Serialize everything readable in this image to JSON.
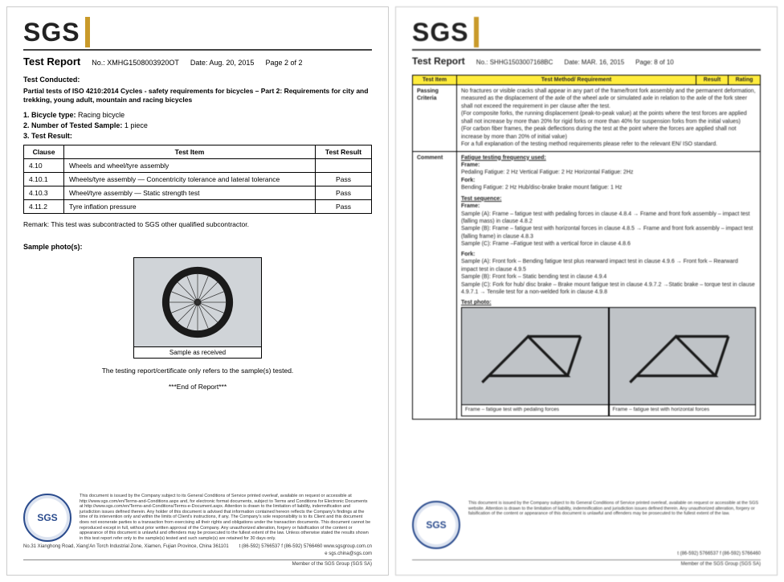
{
  "left": {
    "logo": "SGS",
    "title": "Test Report",
    "no_label": "No.:",
    "no": "XMHG1508003920OT",
    "date_label": "Date:",
    "date": "Aug. 20, 2015",
    "page_label": "Page 2 of  2",
    "conducted_label": "Test Conducted:",
    "conducted_desc": "Partial tests of ISO 4210:2014 Cycles - safety requirements for bicycles – Part 2: Requirements for city and trekking, young adult, mountain and racing bicycles",
    "line1_label": "1.   Bicycle type:",
    "line1_val": "Racing bicycle",
    "line2_label": "2.   Number of Tested Sample:",
    "line2_val": "1 piece",
    "line3_label": "3.   Test Result:",
    "table": {
      "headers": [
        "Clause",
        "Test Item",
        "Test Result"
      ],
      "rows": [
        [
          "4.10",
          "Wheels and wheel/tyre assembly",
          ""
        ],
        [
          "4.10.1",
          "Wheels/tyre assembly — Concentricity tolerance and lateral tolerance",
          "Pass"
        ],
        [
          "4.10.3",
          "Wheel/tyre assembly — Static strength test",
          "Pass"
        ],
        [
          "4.11.2",
          "Tyre inflation pressure",
          "Pass"
        ]
      ]
    },
    "remark": "Remark: This test was subcontracted to SGS other qualified subcontractor.",
    "sample_title": "Sample photo(s):",
    "sample_caption": "Sample as received",
    "end1": "The testing report/certificate only refers to the sample(s) tested.",
    "end2": "***End of Report***",
    "seal": "SGS",
    "footer_fine": "This document is issued by the Company subject to its General Conditions of Service printed overleaf, available on request or accessible at http://www.sgs.com/en/Terms-and-Conditions.aspx and, for electronic format documents, subject to Terms and Conditions for Electronic Documents at http://www.sgs.com/en/Terms-and-Conditions/Terms-e-Document.aspx. Attention is drawn to the limitation of liability, indemnification and jurisdiction issues defined therein. Any holder of this document is advised that information contained hereon reflects the Company's findings at the time of its intervention only and within the limits of Client's instructions, if any. The Company's sole responsibility is to its Client and this document does not exonerate parties to a transaction from exercising all their rights and obligations under the transaction documents. This document cannot be reproduced except in full, without prior written approval of the Company. Any unauthorized alteration, forgery or falsification of the content or appearance of this document is unlawful and offenders may be prosecuted to the fullest extent of the law. Unless otherwise stated the results shown in this test report refer only to the sample(s) tested and such sample(s) are retained for 30 days only.",
    "footer_addr": "No.31 Xianghong Road, Xiang'An Torch Industrial Zone, Xiamen, Fujian Province, China  361101",
    "footer_tel": "t (86-592) 5766537   f (86-592) 5766460   www.sgsgroup.com.cn",
    "footer_email": "e sgs.china@sgs.com",
    "footer_member": "Member of the SGS Group (SGS SA)"
  },
  "right": {
    "logo": "SGS",
    "title": "Test Report",
    "no_label": "No.:",
    "no": "SHHG1503007168BC",
    "date_label": "Date:",
    "date": "MAR. 16, 2015",
    "page_label": "Page: 8 of 10",
    "th1": "Test Item",
    "th2": "Test Method/ Requirement",
    "th3": "Result",
    "th4": "Rating",
    "row1_label": "Passing Criteria",
    "row1_text": "No fractures or visible cracks shall appear in any part of the frame/front fork assembly and the permanent deformation, measured as the displacement of the axle of the wheel axle or simulated axle in relation to the axle of the fork steer shall not exceed the requirement in per clause after the test.\n(For composite forks, the running displacement (peak-to-peak value) at the points where the test forces are applied shall not increase by more than 20% for rigid forks or more than 40% for suspension forks from the initial values)\n(For carbon fiber frames, the peak deflections during the test at the point where the forces are applied shall not increase by more than 20% of initial value)\nFor a full explanation of the testing method requirements please refer to the relevant EN/ ISO standard.",
    "row2_label": "Comment",
    "row2_block1_title": "Fatigue testing frequency used:",
    "row2_frame": "Frame:",
    "row2_frame_line": "Pedaling Fatigue:  2 Hz      Vertical Fatigue:  2 Hz      Horizontal Fatigue: 2Hz",
    "row2_fork": "Fork:",
    "row2_fork_line": "Bending Fatigue: 2 Hz        Hub/disc-brake brake mount fatigue: 1 Hz",
    "row2_seq_title": "Test sequence:",
    "row2_seq_frame": "Frame:",
    "row2_seq_a": "Sample (A): Frame – fatigue test with pedaling forces in clause 4.8.4 → Frame and front fork assembly – impact test (falling mass) in clause 4.8.2",
    "row2_seq_b": "Sample (B): Frame – fatigue test with horizontal forces in clause 4.8.5 → Frame and front fork assembly – impact test (falling frame) in clause 4.8.3",
    "row2_seq_c": "Sample (C): Frame –Fatigue test with a vertical force in clause 4.8.6",
    "row2_seq_fork": "Fork:",
    "row2_seq_fa": "Sample (A): Front fork – Bending fatigue test plus rearward impact test in clause 4.9.6 → Front fork – Rearward impact test in clause 4.9.5",
    "row2_seq_fb": "Sample (B): Front fork – Static bending test in clause 4.9.4",
    "row2_seq_fc": "Sample (C): Fork for hub/ disc brake – Brake mount fatigue test in clause 4.9.7.2 →Static brake – torque test in clause 4.9.7.1 → Tensile test for a non-welded fork in clause 4.9.8",
    "row2_photo_title": "Test photo:",
    "photo_cap1": "Frame – fatigue test with pedaling forces",
    "photo_cap2": "Frame – fatigue test with horizontal forces",
    "seal": "SGS",
    "footer_fine": "This document is issued by the Company subject to its General Conditions of Service printed overleaf, available on request or accessible at the SGS website. Attention is drawn to the limitation of liability, indemnification and jurisdiction issues defined therein. Any unauthorized alteration, forgery or falsification of the content or appearance of this document is unlawful and offenders may be prosecuted to the fullest extent of the law.",
    "footer_tel": "t (86-592) 5766537   f (86-592) 5766460",
    "footer_member": "Member of the SGS Group (SGS SA)"
  },
  "colors": {
    "header_bg": "#ffec3d",
    "border": "#000000",
    "seal_blue": "#2a4b8d",
    "logo_bar": "#c99a2a"
  }
}
